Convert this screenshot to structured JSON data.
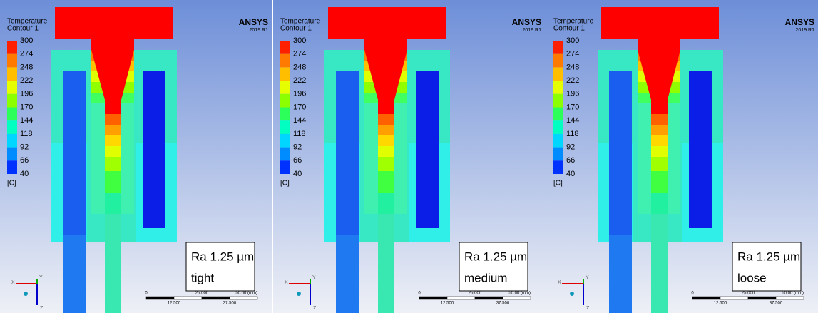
{
  "panels": [
    {
      "legend": {
        "title": "Temperature",
        "subtitle": "Contour 1",
        "levels": [
          300,
          274,
          248,
          222,
          196,
          170,
          144,
          118,
          92,
          66,
          40
        ],
        "unit": "[C]",
        "colors": [
          "#ff2000",
          "#ff7a00",
          "#ffbf00",
          "#e6ff00",
          "#8cff00",
          "#2cff5a",
          "#00ffc0",
          "#00d6ff",
          "#008cff",
          "#0032ff"
        ]
      },
      "logo": {
        "name": "ANSYS",
        "version": "2019 R1"
      },
      "label": {
        "line1": "Ra 1.25 µm",
        "line2": "tight"
      },
      "scale": {
        "ticks": [
          "0",
          "25.000",
          "50.00 (mm)"
        ],
        "minor": [
          "12.500",
          "37.500"
        ]
      },
      "axes": [
        "X",
        "Y",
        "Z"
      ]
    },
    {
      "legend": {
        "title": "Temperature",
        "subtitle": "Contour 1",
        "levels": [
          300,
          274,
          248,
          222,
          196,
          170,
          144,
          118,
          92,
          66,
          40
        ],
        "unit": "[C]",
        "colors": [
          "#ff2000",
          "#ff7a00",
          "#ffbf00",
          "#e6ff00",
          "#8cff00",
          "#2cff5a",
          "#00ffc0",
          "#00d6ff",
          "#008cff",
          "#0032ff"
        ]
      },
      "logo": {
        "name": "ANSYS",
        "version": "2019 R1"
      },
      "label": {
        "line1": "Ra 1.25 µm",
        "line2": "medium"
      },
      "scale": {
        "ticks": [
          "0",
          "25.000",
          "50.00 (mm)"
        ],
        "minor": [
          "12.500",
          "37.500"
        ]
      },
      "axes": [
        "X",
        "Y",
        "Z"
      ]
    },
    {
      "legend": {
        "title": "Temperature",
        "subtitle": "Contour 1",
        "levels": [
          300,
          274,
          248,
          222,
          196,
          170,
          144,
          118,
          92,
          66,
          40
        ],
        "unit": "[C]",
        "colors": [
          "#ff2000",
          "#ff7a00",
          "#ffbf00",
          "#e6ff00",
          "#8cff00",
          "#2cff5a",
          "#00ffc0",
          "#00d6ff",
          "#008cff",
          "#0032ff"
        ]
      },
      "logo": {
        "name": "ANSYS",
        "version": "2019 R1"
      },
      "label": {
        "line1": "Ra 1.25 µm",
        "line2": "loose"
      },
      "scale": {
        "ticks": [
          "0",
          "25.000",
          "50.00 (mm)"
        ],
        "minor": [
          "12.500",
          "37.500"
        ]
      },
      "axes": [
        "X",
        "Y",
        "Z"
      ]
    }
  ]
}
